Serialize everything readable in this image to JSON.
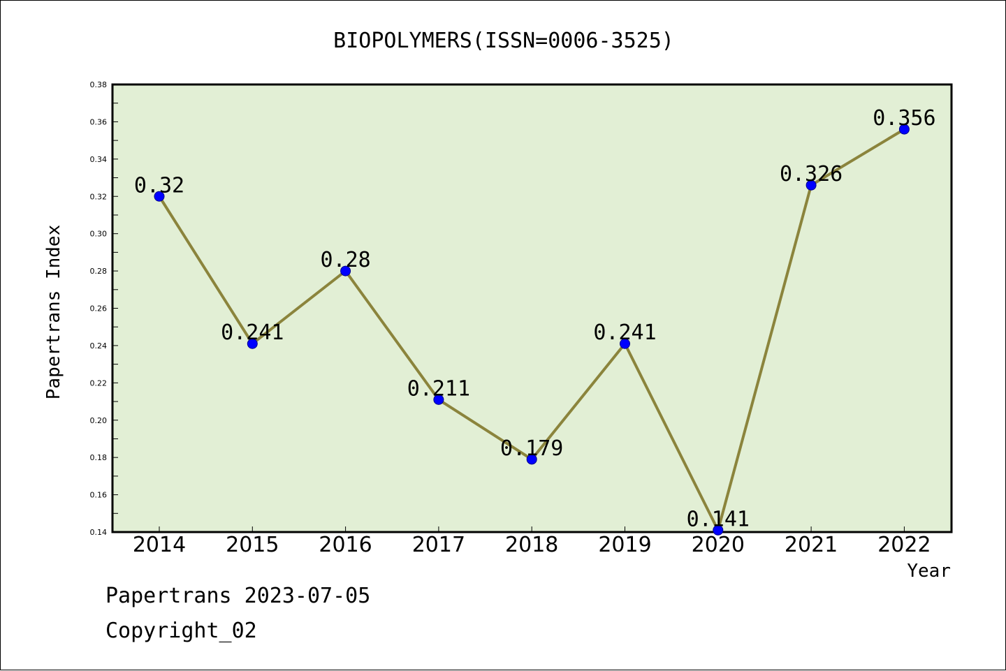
{
  "footer": {
    "date_line": "Papertrans 2023-07-05",
    "copyright_line": "Copyright_02"
  },
  "colors": {
    "plot_background": "#e2efd5",
    "line": "#8b843c",
    "marker": "#0000ff"
  },
  "chart_data": {
    "type": "line",
    "title": "BIOPOLYMERS(ISSN=0006-3525)",
    "xlabel": "Year",
    "ylabel": "Papertrans Index",
    "categories": [
      "2014",
      "2015",
      "2016",
      "2017",
      "2018",
      "2019",
      "2020",
      "2021",
      "2022"
    ],
    "values": [
      0.32,
      0.241,
      0.28,
      0.211,
      0.179,
      0.241,
      0.141,
      0.326,
      0.356
    ],
    "data_labels": [
      "0.32",
      "0.241",
      "0.28",
      "0.211",
      "0.179",
      "0.241",
      "0.141",
      "0.326",
      "0.356"
    ],
    "ylim": [
      0.14,
      0.38
    ],
    "yticks": [
      "0.14",
      "0.16",
      "0.18",
      "0.20",
      "0.22",
      "0.24",
      "0.26",
      "0.28",
      "0.30",
      "0.32",
      "0.34",
      "0.36",
      "0.38"
    ],
    "grid": false,
    "legend": "none"
  }
}
